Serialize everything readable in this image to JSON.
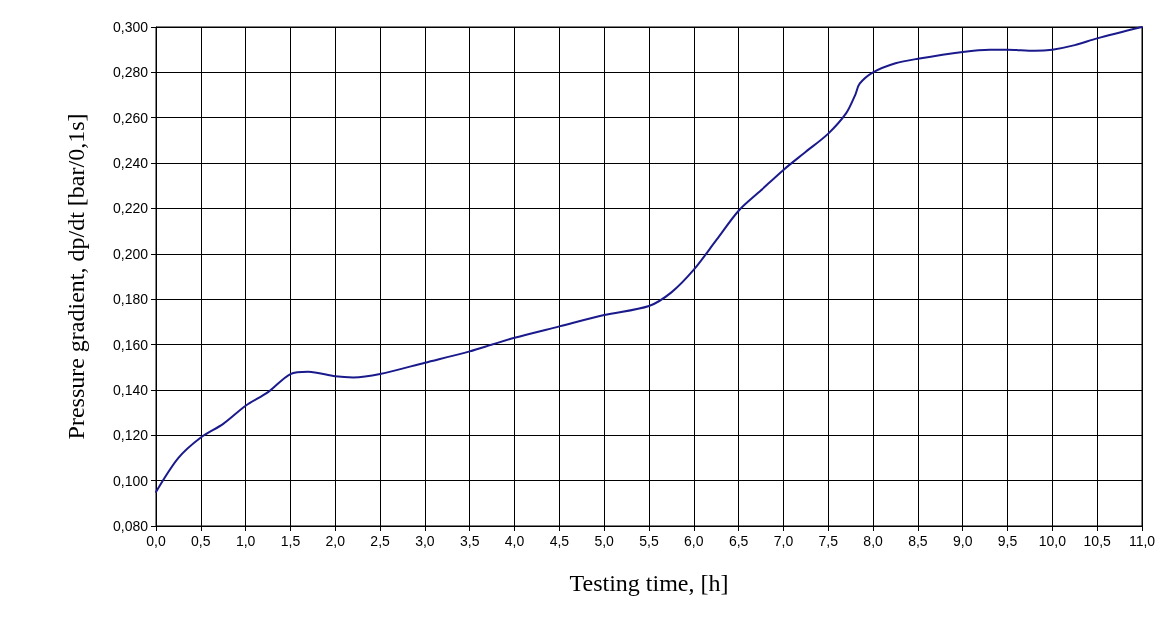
{
  "chart_data": {
    "type": "line",
    "xlabel": "Testing time, [h]",
    "ylabel": "Pressure gradient, dp/dt [bar/0,1s]",
    "x": [
      0,
      0.25,
      0.5,
      0.75,
      1.0,
      1.25,
      1.5,
      1.7,
      2.0,
      2.2,
      2.5,
      3.0,
      3.5,
      3.75,
      4.0,
      4.5,
      5.0,
      5.5,
      5.75,
      6.0,
      6.25,
      6.5,
      6.75,
      7.0,
      7.25,
      7.5,
      7.7,
      7.8,
      7.85,
      8.0,
      8.25,
      8.5,
      9.0,
      9.3,
      9.5,
      9.8,
      10.0,
      10.25,
      10.5,
      11.0
    ],
    "series": [
      {
        "color": "#1a1a8c",
        "values": [
          0.095,
          0.11,
          0.119,
          0.125,
          0.133,
          0.139,
          0.147,
          0.148,
          0.146,
          0.1455,
          0.147,
          0.152,
          0.157,
          0.16,
          0.163,
          0.168,
          0.173,
          0.177,
          0.183,
          0.193,
          0.206,
          0.219,
          0.228,
          0.237,
          0.245,
          0.253,
          0.262,
          0.27,
          0.275,
          0.28,
          0.284,
          0.286,
          0.289,
          0.29,
          0.29,
          0.2895,
          0.29,
          0.292,
          0.295,
          0.3
        ]
      }
    ],
    "xlim": [
      0,
      11
    ],
    "xticks": [
      {
        "value": 0,
        "label": "0,0"
      },
      {
        "value": 0.5,
        "label": "0,5"
      },
      {
        "value": 1,
        "label": "1,0"
      },
      {
        "value": 1.5,
        "label": "1,5"
      },
      {
        "value": 2,
        "label": "2,0"
      },
      {
        "value": 2.5,
        "label": "2,5"
      },
      {
        "value": 3,
        "label": "3,0"
      },
      {
        "value": 3.5,
        "label": "3,5"
      },
      {
        "value": 4,
        "label": "4,0"
      },
      {
        "value": 4.5,
        "label": "4,5"
      },
      {
        "value": 5,
        "label": "5,0"
      },
      {
        "value": 5.5,
        "label": "5,5"
      },
      {
        "value": 6,
        "label": "6,0"
      },
      {
        "value": 6.5,
        "label": "6,5"
      },
      {
        "value": 7,
        "label": "7,0"
      },
      {
        "value": 7.5,
        "label": "7,5"
      },
      {
        "value": 8,
        "label": "8,0"
      },
      {
        "value": 8.5,
        "label": "8,5"
      },
      {
        "value": 9,
        "label": "9,0"
      },
      {
        "value": 9.5,
        "label": "9,5"
      },
      {
        "value": 10,
        "label": "10,0"
      },
      {
        "value": 10.5,
        "label": "10,5"
      },
      {
        "value": 11,
        "label": "11,0"
      }
    ],
    "ylim": [
      0.08,
      0.3
    ],
    "yticks": [
      {
        "value": 0.08,
        "label": "0,080"
      },
      {
        "value": 0.1,
        "label": "0,100"
      },
      {
        "value": 0.12,
        "label": "0,120"
      },
      {
        "value": 0.14,
        "label": "0,140"
      },
      {
        "value": 0.16,
        "label": "0,160"
      },
      {
        "value": 0.18,
        "label": "0,180"
      },
      {
        "value": 0.2,
        "label": "0,200"
      },
      {
        "value": 0.22,
        "label": "0,220"
      },
      {
        "value": 0.24,
        "label": "0,240"
      },
      {
        "value": 0.26,
        "label": "0,260"
      },
      {
        "value": 0.28,
        "label": "0,280"
      },
      {
        "value": 0.3,
        "label": "0,300"
      }
    ],
    "grid": true,
    "marker": "none",
    "line_style": "solid"
  }
}
